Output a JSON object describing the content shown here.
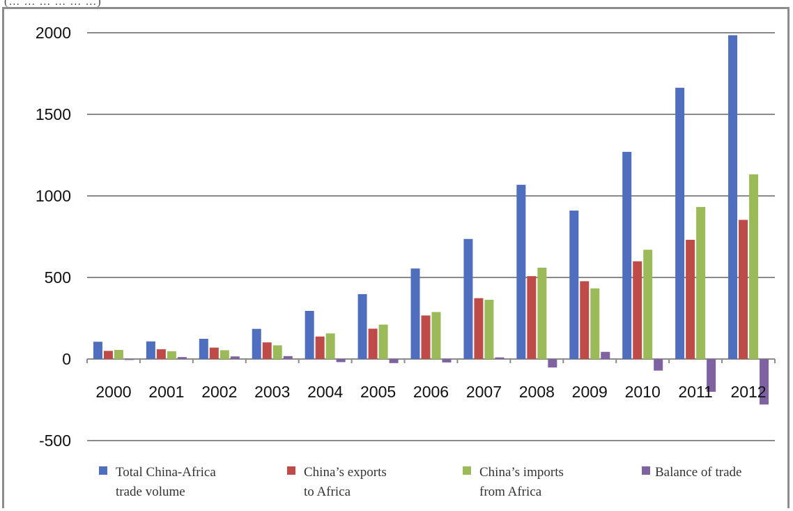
{
  "caption": "(… … … … … …)",
  "chart_data": {
    "type": "bar",
    "title": "",
    "xlabel": "",
    "ylabel": "",
    "ylim": [
      -500,
      2000
    ],
    "yticks": [
      2000,
      1500,
      1000,
      500,
      0,
      -500
    ],
    "grid": true,
    "legend_position": "bottom",
    "categories": [
      "2000",
      "2001",
      "2002",
      "2003",
      "2004",
      "2005",
      "2006",
      "2007",
      "2008",
      "2009",
      "2010",
      "2011",
      "2012"
    ],
    "series": [
      {
        "name": "Total China-Africa trade volume",
        "legend_lines": [
          "Total China-Africa",
          "trade volume"
        ],
        "color": "#4f6fbe",
        "values": [
          106,
          108,
          124,
          185,
          295,
          398,
          555,
          736,
          1068,
          910,
          1270,
          1663,
          1985
        ]
      },
      {
        "name": "China's exports to Africa",
        "legend_lines": [
          "China’s exports",
          "to Africa"
        ],
        "color": "#bf4b48",
        "values": [
          50,
          60,
          70,
          102,
          138,
          186,
          267,
          373,
          508,
          477,
          599,
          731,
          853
        ]
      },
      {
        "name": "China's imports from Africa",
        "legend_lines": [
          "China’s imports",
          "from Africa"
        ],
        "color": "#9bbb59",
        "values": [
          56,
          48,
          54,
          84,
          157,
          211,
          288,
          363,
          560,
          433,
          670,
          932,
          1132
        ]
      },
      {
        "name": "Balance of trade",
        "legend_lines": [
          "Balance of trade"
        ],
        "color": "#7e63a0",
        "values": [
          -6,
          12,
          16,
          18,
          -19,
          -25,
          -21,
          10,
          -52,
          44,
          -71,
          -201,
          -279
        ]
      }
    ]
  }
}
